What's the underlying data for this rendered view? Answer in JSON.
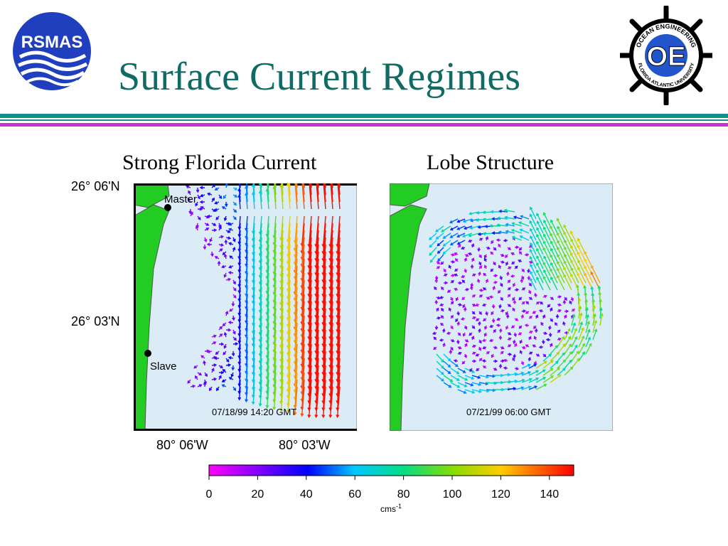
{
  "header": {
    "title": "Surface Current Regimes",
    "left_logo": {
      "text": "RSMAS",
      "icon": "rsmas-logo"
    },
    "right_logo": {
      "text": "OE",
      "ring_top": "OCEAN ENGINEERING",
      "ring_bottom": "FLORIDA ATLANTIC UNIVERSITY",
      "icon": "ship-wheel-logo"
    }
  },
  "panels": [
    {
      "caption": "Strong Florida Current",
      "timestamp": "07/18/99 14:20 GMT",
      "station_master": "Master",
      "station_slave": "Slave"
    },
    {
      "caption": "Lobe Structure",
      "timestamp": "07/21/99 06:00 GMT"
    }
  ],
  "axes": {
    "lat_labels": [
      "26° 06'N",
      "26° 03'N"
    ],
    "lon_labels": [
      "80° 06'W",
      "80° 03'W"
    ]
  },
  "colorbar": {
    "ticks": [
      "0",
      "20",
      "40",
      "60",
      "80",
      "100",
      "120",
      "140"
    ],
    "range": [
      0,
      150
    ],
    "unit": "cms",
    "unit_exp": "-1"
  },
  "colors": {
    "title": "#0f6b64",
    "water": "#dcecf6",
    "land": "#22cc22",
    "rule_teal": "#138e8a",
    "rule_magenta": "#cc33cc"
  }
}
